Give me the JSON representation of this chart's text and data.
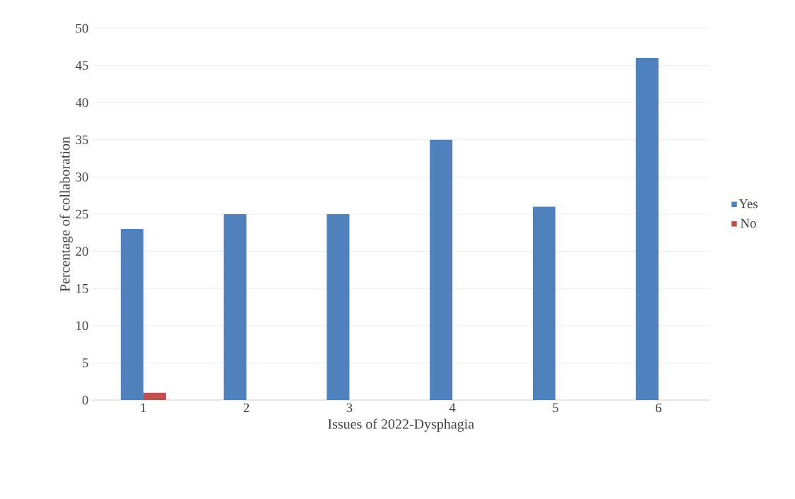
{
  "chart_data": {
    "type": "bar",
    "xlabel": "Issues of 2022-Dysphagia",
    "ylabel": "Percentage of collaboration",
    "categories": [
      "1",
      "2",
      "3",
      "4",
      "5",
      "6"
    ],
    "series": [
      {
        "name": "Yes",
        "color": "#4f81bd",
        "values": [
          23,
          25,
          25,
          35,
          26,
          46
        ]
      },
      {
        "name": "No",
        "color": "#c0504d",
        "values": [
          1,
          0,
          0,
          0,
          0,
          0
        ]
      }
    ],
    "ylim": [
      0,
      50
    ],
    "yticks": [
      0,
      5,
      10,
      15,
      20,
      25,
      30,
      35,
      40,
      45,
      50
    ],
    "grid": "y",
    "legend": "right"
  }
}
